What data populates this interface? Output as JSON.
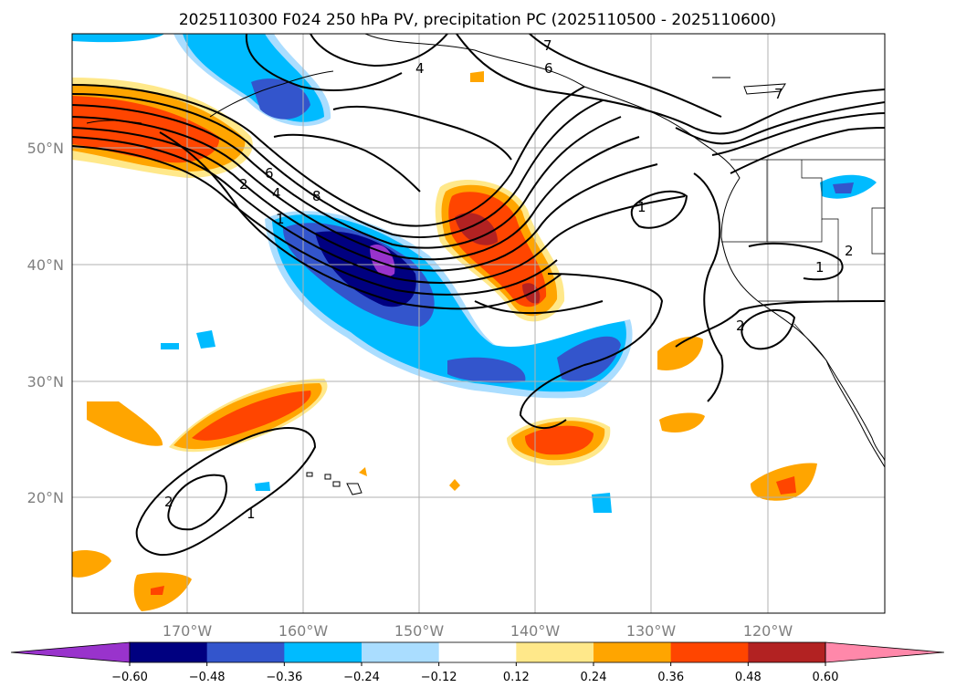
{
  "title": "2025110300 F024 250 hPa PV, precipitation PC (2025110500 - 2025110600)",
  "lat_labels": [
    "50°N",
    "40°N",
    "30°N",
    "20°N"
  ],
  "lon_labels": [
    "170°W",
    "160°W",
    "150°W",
    "140°W",
    "130°W",
    "120°W"
  ],
  "colorbar": {
    "labels": [
      "−0.60",
      "−0.48",
      "−0.36",
      "−0.24",
      "−0.12",
      "0.12",
      "0.24",
      "0.36",
      "0.48",
      "0.60"
    ],
    "colors": [
      "#9933cc",
      "#000080",
      "#3355cc",
      "#00bbff",
      "#aaddff",
      "#ffffff",
      "#ffe88a",
      "#ffa500",
      "#ff4500",
      "#b22222",
      "#ff88aa"
    ]
  },
  "contour_labels": [
    "4",
    "6",
    "6",
    "4",
    "2",
    "1",
    "8",
    "2",
    "1",
    "7",
    "2",
    "1",
    "2",
    "1",
    "7"
  ],
  "colors": {
    "purple": "#9933cc",
    "navy": "#000080",
    "blue": "#3355cc",
    "cyan": "#00bbff",
    "lightblue": "#aaddff",
    "yellow": "#ffe88a",
    "orange": "#ffa500",
    "redorange": "#ff4500",
    "darkred": "#b22222"
  }
}
